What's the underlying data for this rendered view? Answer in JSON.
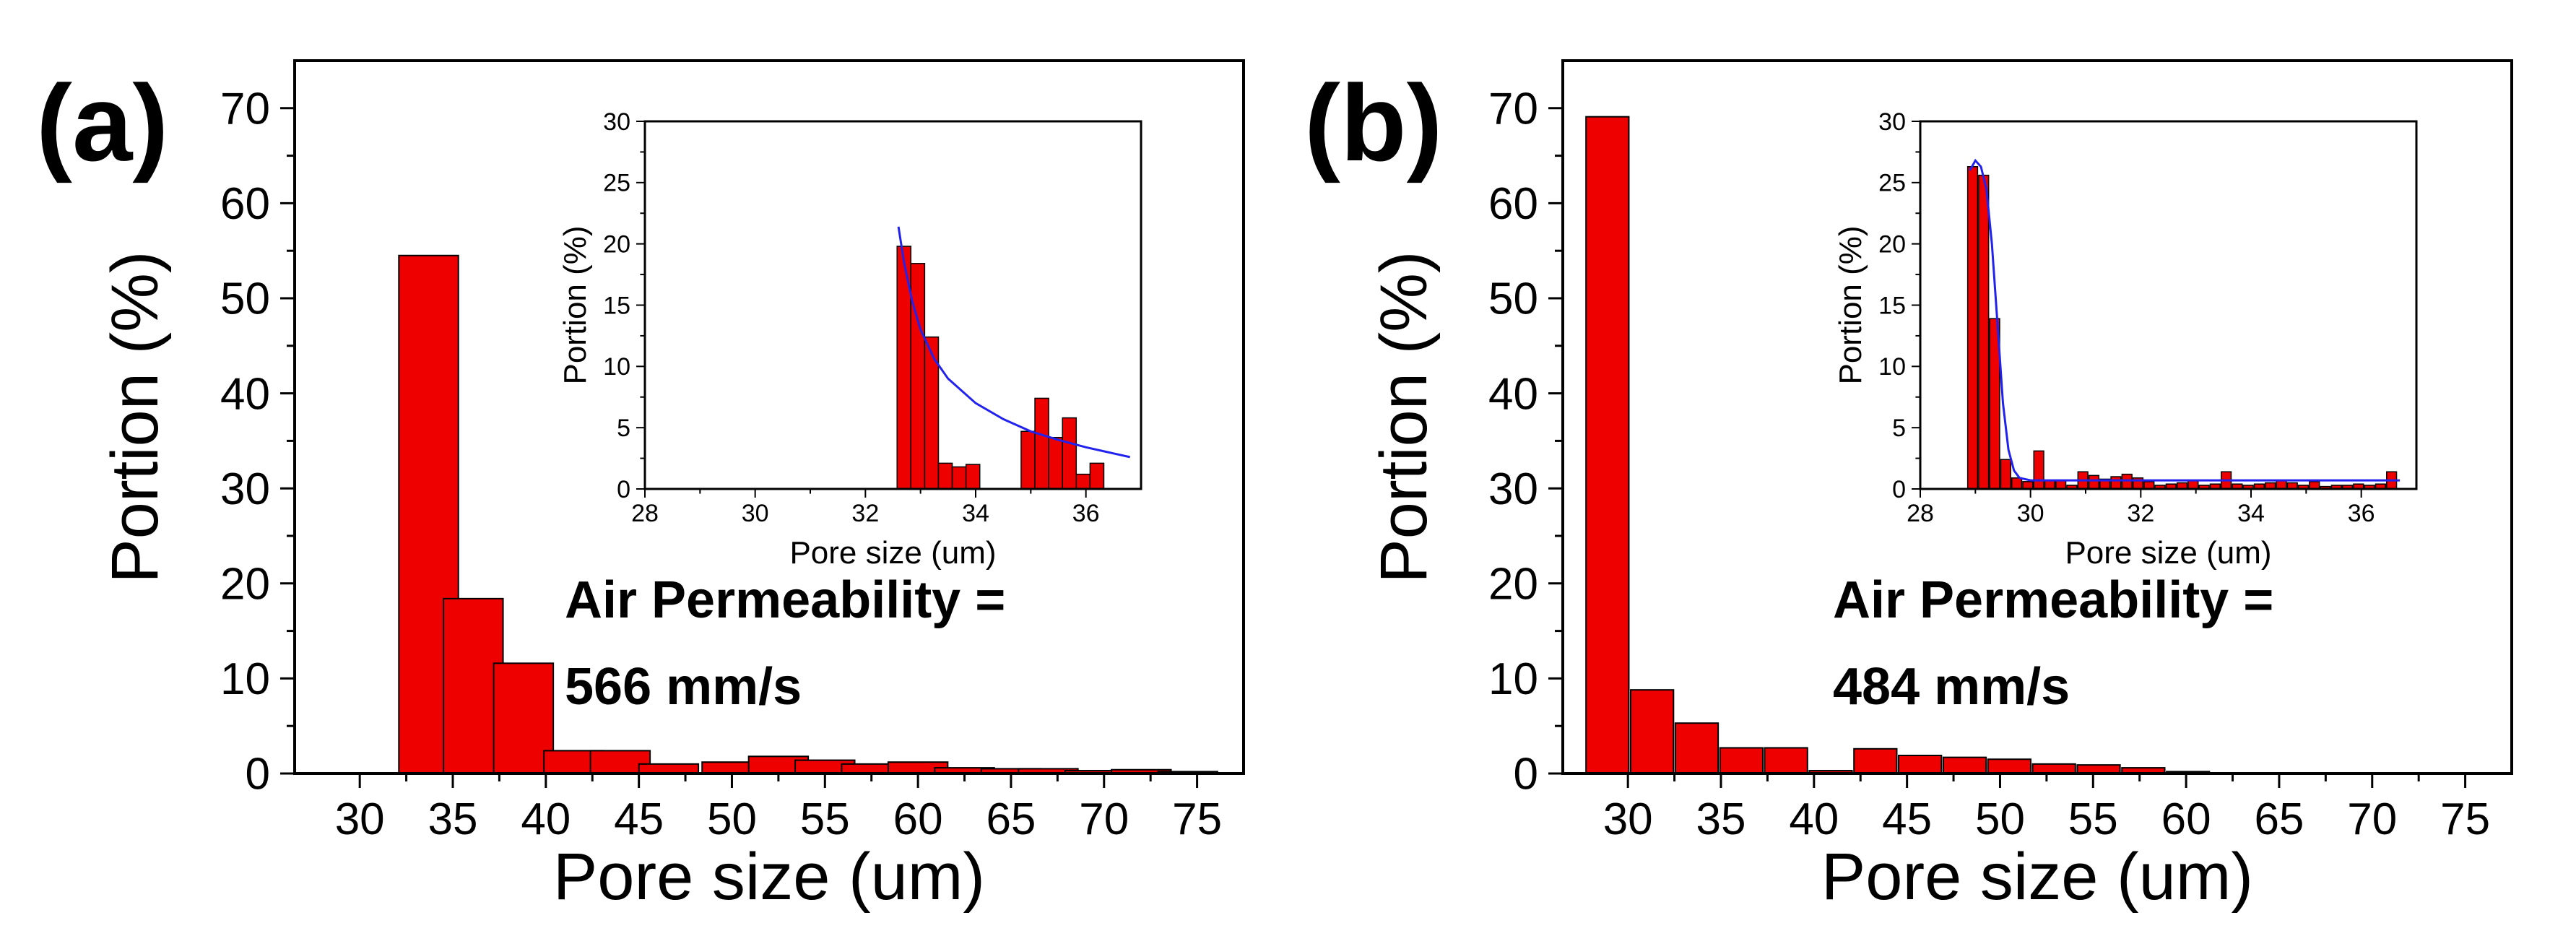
{
  "chart_data": [
    {
      "type": "bar",
      "panel_label": "(a)",
      "title": "",
      "xlabel": "Pore size (um)",
      "ylabel": "Portion (%)",
      "xlim": [
        26.5,
        77.5
      ],
      "ylim": [
        0,
        75
      ],
      "xticks": [
        30,
        35,
        40,
        45,
        50,
        55,
        60,
        65,
        70,
        75
      ],
      "yticks": [
        0,
        10,
        20,
        30,
        40,
        50,
        60,
        70
      ],
      "bar_width": 3.2,
      "bar_color": "#ee0000",
      "x": [
        33.7,
        36.1,
        38.8,
        41.5,
        44.0,
        46.6,
        50.0,
        52.5,
        55.0,
        57.5,
        60.0,
        62.5,
        65.0,
        67.0,
        69.5,
        72.0,
        74.5
      ],
      "values": [
        54.5,
        18.4,
        11.6,
        2.4,
        2.4,
        1.0,
        1.2,
        1.8,
        1.4,
        1.0,
        1.2,
        0.6,
        0.5,
        0.5,
        0.3,
        0.4,
        0.2
      ],
      "annotation_line1": "Air Permeability =",
      "annotation_line2": "566 mm/s",
      "inset": {
        "type": "bar",
        "xlabel": "Pore size (um)",
        "ylabel": "Portion (%)",
        "xlim": [
          28,
          37
        ],
        "ylim": [
          0,
          30
        ],
        "xticks": [
          28,
          30,
          32,
          34,
          36
        ],
        "yticks": [
          0,
          5,
          10,
          15,
          20,
          25,
          30
        ],
        "bar_width": 0.25,
        "bar_color": "#ee0000",
        "fit_color": "#2222ee",
        "x": [
          32.7,
          32.95,
          33.2,
          33.45,
          33.7,
          33.95,
          34.95,
          35.2,
          35.45,
          35.7,
          35.95,
          36.2
        ],
        "values": [
          19.8,
          18.4,
          12.4,
          2.1,
          1.8,
          2.0,
          4.7,
          7.4,
          4.2,
          5.8,
          1.2,
          2.1
        ],
        "fit_x": [
          32.6,
          32.7,
          32.85,
          33.0,
          33.25,
          33.5,
          34.0,
          34.5,
          35.0,
          35.5,
          36.0,
          36.5,
          36.8
        ],
        "fit_y": [
          21.4,
          18.5,
          15.3,
          13.0,
          10.6,
          9.0,
          7.0,
          5.7,
          4.7,
          4.0,
          3.4,
          2.9,
          2.6
        ]
      }
    },
    {
      "type": "bar",
      "panel_label": "(b)",
      "title": "",
      "xlabel": "Pore size (um)",
      "ylabel": "Portion (%)",
      "xlim": [
        26.5,
        77.5
      ],
      "ylim": [
        0,
        75
      ],
      "xticks": [
        30,
        35,
        40,
        45,
        50,
        55,
        60,
        65,
        70,
        75
      ],
      "yticks": [
        0,
        10,
        20,
        30,
        40,
        50,
        60,
        70
      ],
      "bar_width": 2.3,
      "bar_color": "#ee0000",
      "x": [
        28.9,
        31.3,
        33.7,
        36.1,
        38.5,
        40.9,
        43.3,
        45.7,
        48.1,
        50.5,
        52.9,
        55.3,
        57.7,
        60.1
      ],
      "values": [
        69.1,
        8.8,
        5.3,
        2.7,
        2.7,
        0.3,
        2.6,
        1.9,
        1.7,
        1.5,
        1.0,
        0.9,
        0.6,
        0.2
      ],
      "annotation_line1": "Air Permeability =",
      "annotation_line2": "484 mm/s",
      "inset": {
        "type": "bar",
        "xlabel": "Pore size (um)",
        "ylabel": "Portion (%)",
        "xlim": [
          28,
          37
        ],
        "ylim": [
          0,
          30
        ],
        "xticks": [
          28,
          30,
          32,
          34,
          36
        ],
        "yticks": [
          0,
          5,
          10,
          15,
          20,
          25,
          30
        ],
        "bar_width": 0.18,
        "bar_color": "#ee0000",
        "fit_color": "#2222ee",
        "x": [
          28.95,
          29.15,
          29.35,
          29.55,
          29.75,
          29.95,
          30.15,
          30.35,
          30.55,
          30.75,
          30.95,
          31.15,
          31.35,
          31.55,
          31.75,
          31.95,
          32.15,
          32.35,
          32.55,
          32.75,
          32.95,
          33.15,
          33.35,
          33.55,
          33.75,
          33.95,
          34.15,
          34.35,
          34.55,
          34.75,
          34.95,
          35.15,
          35.35,
          35.55,
          35.75,
          35.95,
          36.15,
          36.35,
          36.55
        ],
        "values": [
          26.3,
          25.6,
          13.9,
          2.4,
          0.9,
          0.6,
          3.1,
          0.7,
          0.7,
          0.3,
          1.4,
          1.1,
          0.8,
          1.0,
          1.2,
          0.9,
          0.6,
          0.3,
          0.4,
          0.5,
          0.7,
          0.3,
          0.4,
          1.4,
          0.4,
          0.3,
          0.4,
          0.5,
          0.7,
          0.5,
          0.3,
          0.6,
          0.2,
          0.3,
          0.3,
          0.4,
          0.3,
          0.4,
          1.4
        ],
        "fit_x": [
          28.9,
          29.0,
          29.1,
          29.2,
          29.3,
          29.4,
          29.5,
          29.6,
          29.7,
          29.8,
          30.0,
          30.5,
          31.0,
          32.0,
          34.0,
          36.7
        ],
        "fit_y": [
          26.0,
          26.8,
          26.3,
          24.5,
          20.0,
          13.5,
          7.0,
          3.2,
          1.5,
          0.9,
          0.7,
          0.7,
          0.7,
          0.7,
          0.7,
          0.7
        ]
      }
    }
  ]
}
